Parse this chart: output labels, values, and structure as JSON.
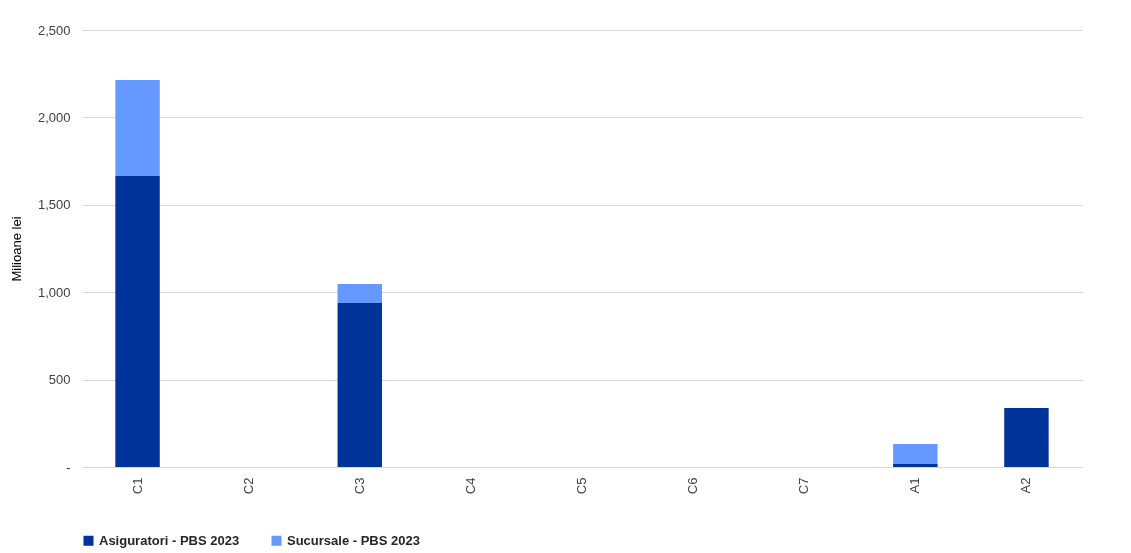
{
  "chart_data": {
    "type": "bar",
    "stacked": true,
    "ylabel": "Milioane lei",
    "categories": [
      "C1",
      "C2",
      "C3",
      "C4",
      "C5",
      "C6",
      "C7",
      "A1",
      "A2"
    ],
    "series": [
      {
        "name": "Asiguratori - PBS 2023",
        "color": "#003399",
        "values": [
          1665,
          0,
          938,
          0,
          0,
          0,
          0,
          17,
          338
        ]
      },
      {
        "name": "Sucursale - PBS 2023",
        "color": "#6699ff",
        "values": [
          549,
          0,
          109,
          0,
          0,
          0,
          0,
          115,
          0
        ]
      }
    ],
    "ylim": [
      0,
      2500
    ],
    "yticks": [
      {
        "value": 0,
        "label": "-"
      },
      {
        "value": 500,
        "label": "500"
      },
      {
        "value": 1000,
        "label": "1,000"
      },
      {
        "value": 1500,
        "label": "1,500"
      },
      {
        "value": 2000,
        "label": "2,000"
      },
      {
        "value": 2500,
        "label": "2,500"
      }
    ],
    "grid": "y",
    "legend": "bottom"
  }
}
